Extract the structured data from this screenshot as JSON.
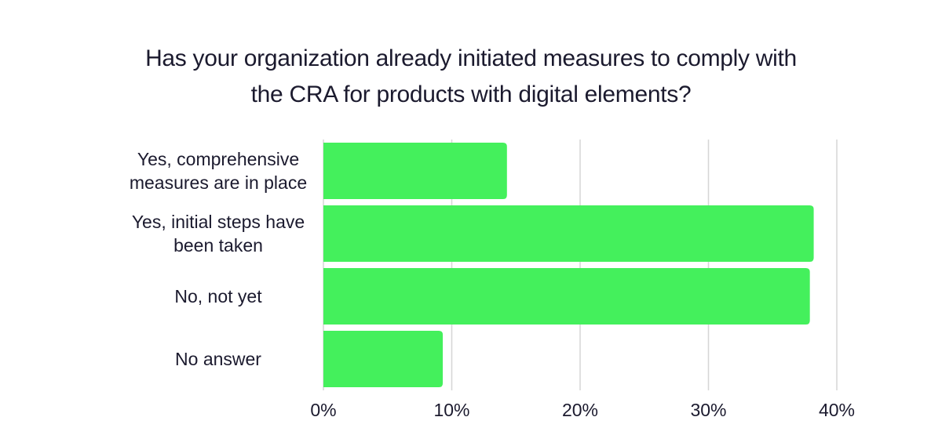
{
  "chart_data": {
    "type": "bar",
    "orientation": "horizontal",
    "title": "Has your organization already initiated measures to comply with\nthe CRA for products with digital elements?",
    "categories": [
      [
        "Yes, comprehensive",
        "measures are in place"
      ],
      [
        "Yes, initial steps have",
        "been taken"
      ],
      [
        "No, not yet"
      ],
      [
        "No answer"
      ]
    ],
    "values": [
      14.3,
      38.2,
      37.9,
      9.3
    ],
    "unit": "%",
    "xlabel": "",
    "ylabel": "",
    "xlim": [
      0,
      40
    ],
    "xticks": [
      0,
      10,
      20,
      30,
      40
    ],
    "xtick_labels": [
      "0%",
      "10%",
      "20%",
      "30%",
      "40%"
    ],
    "grid": "vertical",
    "legend": "none",
    "bar_color": "#44f05c"
  }
}
